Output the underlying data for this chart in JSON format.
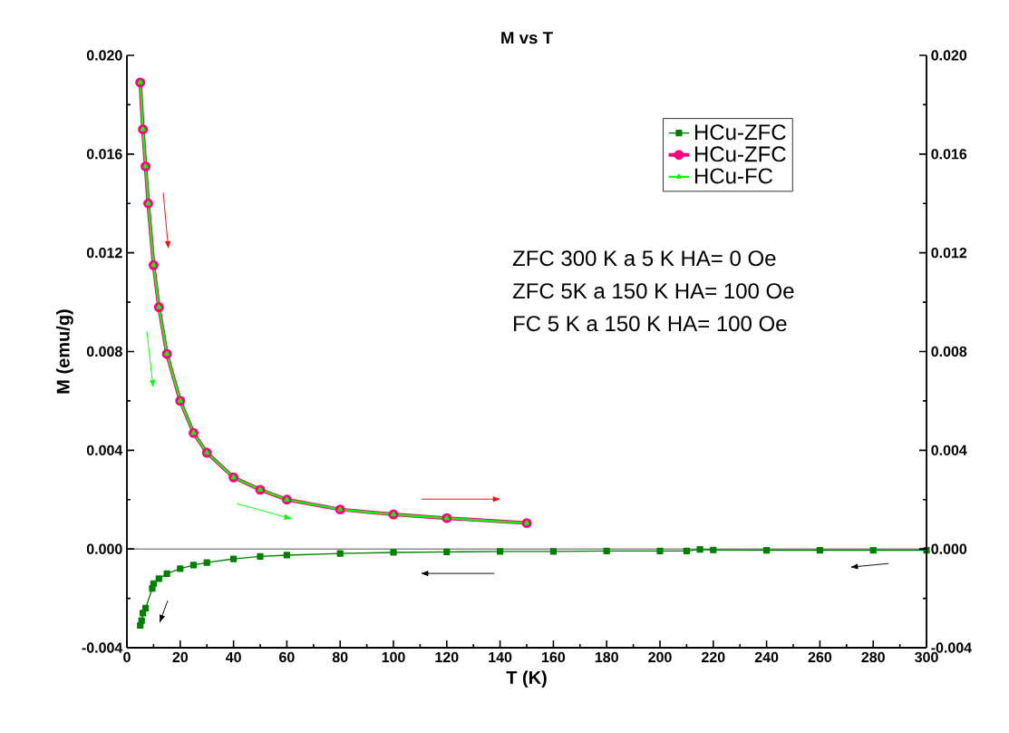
{
  "chart_data": {
    "type": "line",
    "title": "M vs T",
    "xlabel": "T (K)",
    "ylabel": "M (emu/g)",
    "xlim": [
      0,
      300
    ],
    "xticks": [
      0,
      20,
      40,
      60,
      80,
      100,
      120,
      140,
      160,
      180,
      200,
      220,
      240,
      260,
      280,
      300
    ],
    "ylim": [
      -0.004,
      0.02
    ],
    "yticks": [
      {
        "value": -0.004,
        "label": "-0.004"
      },
      {
        "value": 0,
        "label": "0.000"
      },
      {
        "value": 0.004,
        "label": "0.004"
      },
      {
        "value": 0.008,
        "label": "0.008"
      },
      {
        "value": 0.012,
        "label": "0.012"
      },
      {
        "value": 0.016,
        "label": "0.016"
      },
      {
        "value": 0.02,
        "label": "0.020"
      }
    ],
    "y2lim": [
      -0.004,
      0.02
    ],
    "y2ticks": [
      {
        "value": -0.004,
        "label": "-0.004"
      },
      {
        "value": 0,
        "label": "0.000"
      },
      {
        "value": 0.004,
        "label": "0.004"
      },
      {
        "value": 0.008,
        "label": "0.008"
      },
      {
        "value": 0.012,
        "label": "0.012"
      },
      {
        "value": 0.016,
        "label": "0.016"
      },
      {
        "value": 0.02,
        "label": "0.020"
      }
    ],
    "grid": false,
    "legend": "top right",
    "ref_lines": [
      {
        "axis": "y",
        "value": 0,
        "color": "#000000"
      }
    ],
    "annotations": [
      "ZFC 300 K a 5 K HA= 0 Oe",
      "ZFC 5K a 150 K HA= 100 Oe",
      "FC 5 K a 150 K HA= 100 Oe"
    ],
    "series": [
      {
        "name": "HCu-ZFC",
        "color": "#008000",
        "marker": "square",
        "x": [
          300,
          280,
          260,
          240,
          220,
          215,
          210,
          200,
          180,
          160,
          140,
          120,
          100,
          80,
          60,
          50,
          40,
          30,
          25,
          20,
          15,
          12,
          10,
          9.5,
          7,
          6,
          5.5,
          5
        ],
        "values": [
          -5e-05,
          -5e-05,
          -5e-05,
          -5e-05,
          -4e-05,
          -2e-05,
          -8e-05,
          -8e-05,
          -8e-05,
          -0.0001,
          -0.0001,
          -0.00012,
          -0.00014,
          -0.00018,
          -0.00025,
          -0.0003,
          -0.0004,
          -0.00055,
          -0.00065,
          -0.0008,
          -0.001,
          -0.0012,
          -0.0014,
          -0.0016,
          -0.0024,
          -0.0026,
          -0.0029,
          -0.0031
        ]
      },
      {
        "name": "HCu-ZFC",
        "color": "#ff0080",
        "marker": "circle",
        "x": [
          5,
          6,
          7,
          8,
          10,
          12,
          15,
          20,
          25,
          30,
          40,
          50,
          60,
          80,
          100,
          120,
          150
        ],
        "values": [
          0.0189,
          0.017,
          0.0155,
          0.014,
          0.0115,
          0.0098,
          0.0079,
          0.006,
          0.0047,
          0.0039,
          0.0029,
          0.0024,
          0.002,
          0.0016,
          0.0014,
          0.00125,
          0.00105
        ]
      },
      {
        "name": "HCu-FC",
        "color": "#00ff00",
        "marker": "triangle",
        "x": [
          5,
          6,
          7,
          8,
          10,
          12,
          15,
          20,
          25,
          30,
          40,
          50,
          60,
          80,
          100,
          120,
          150
        ],
        "values": [
          0.0189,
          0.017,
          0.0155,
          0.014,
          0.0115,
          0.0098,
          0.0079,
          0.006,
          0.0047,
          0.0039,
          0.0029,
          0.0024,
          0.002,
          0.0016,
          0.0014,
          0.00125,
          0.00105
        ]
      }
    ]
  }
}
